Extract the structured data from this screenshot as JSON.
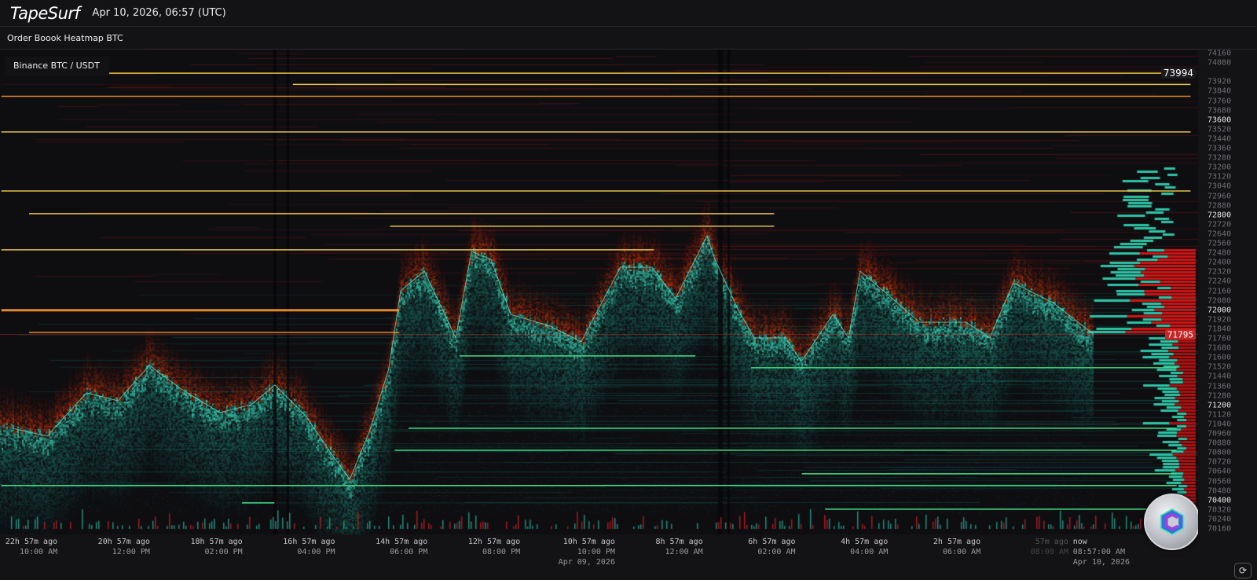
{
  "header": {
    "logo": "TapeSurf",
    "datetime": "Apr 10, 2026, 06:57 (UTC)"
  },
  "subheader": {
    "title": "Order Boook Heatmap BTC"
  },
  "legend": {
    "label": "Binance BTC / USDT"
  },
  "colors": {
    "ask": "#d01515",
    "bid": "#2ec4a6",
    "level_yellow": "#e3c04a",
    "level_orange": "#e08a2a",
    "level_green": "#3ee08a",
    "last_price": "#e53935",
    "background": "#0e0e11"
  },
  "chart_data": {
    "type": "heatmap",
    "y_unit": "USDT",
    "ylim": [
      70160,
      74160
    ],
    "y_ticks": [
      74160,
      74080,
      73920,
      73840,
      73760,
      73680,
      73600,
      73520,
      73440,
      73360,
      73280,
      73200,
      73120,
      73040,
      72960,
      72880,
      72800,
      72720,
      72640,
      72560,
      72480,
      72400,
      72320,
      72240,
      72160,
      72080,
      72000,
      71920,
      71840,
      71760,
      71680,
      71600,
      71520,
      71440,
      71360,
      71280,
      71200,
      71120,
      71040,
      70960,
      70880,
      70800,
      70720,
      70640,
      70560,
      70480,
      70400,
      70320,
      70240,
      70160
    ],
    "y_ticks_bright": [
      73600,
      72800,
      72000,
      71200,
      70400
    ],
    "current_level_label": "73994",
    "last_price_label": "71795",
    "x_ticks": [
      {
        "ago": "22h 57m ago",
        "time": "10:00 AM",
        "hours_ago": 22.95
      },
      {
        "ago": "20h 57m ago",
        "time": "12:00 PM",
        "hours_ago": 20.95
      },
      {
        "ago": "18h 57m ago",
        "time": "02:00 PM",
        "hours_ago": 18.95
      },
      {
        "ago": "16h 57m ago",
        "time": "04:00 PM",
        "hours_ago": 16.95
      },
      {
        "ago": "14h 57m ago",
        "time": "06:00 PM",
        "hours_ago": 14.95
      },
      {
        "ago": "12h 57m ago",
        "time": "08:00 PM",
        "hours_ago": 12.95
      },
      {
        "ago": "10h 57m ago",
        "time": "10:00 PM",
        "date": "Apr 09, 2026",
        "hours_ago": 10.95
      },
      {
        "ago": "8h 57m ago",
        "time": "12:00 AM",
        "hours_ago": 8.95
      },
      {
        "ago": "6h 57m ago",
        "time": "02:00 AM",
        "hours_ago": 6.95
      },
      {
        "ago": "4h 57m ago",
        "time": "04:00 AM",
        "hours_ago": 4.95
      },
      {
        "ago": "2h 57m ago",
        "time": "06:00 AM",
        "hours_ago": 2.95
      },
      {
        "ago": "57m ago",
        "time": "08:00 AM",
        "hours_ago": 0.95,
        "dim": true
      },
      {
        "ago": "now",
        "time": "08:57:00 AM",
        "date": "Apr 10, 2026",
        "hours_ago": 0
      }
    ],
    "mid_price": [
      [
        23.37,
        71007
      ],
      [
        22.61,
        70941
      ],
      [
        21.76,
        71304
      ],
      [
        21.08,
        71238
      ],
      [
        20.4,
        71536
      ],
      [
        19.72,
        71338
      ],
      [
        18.88,
        71139
      ],
      [
        18.2,
        71205
      ],
      [
        17.69,
        71371
      ],
      [
        17.01,
        71106
      ],
      [
        16.5,
        70809
      ],
      [
        16.07,
        70577
      ],
      [
        15.65,
        70974
      ],
      [
        15.23,
        71503
      ],
      [
        14.97,
        72164
      ],
      [
        14.46,
        72329
      ],
      [
        13.78,
        71767
      ],
      [
        13.44,
        72494
      ],
      [
        13.02,
        72428
      ],
      [
        12.59,
        71965
      ],
      [
        11.74,
        71866
      ],
      [
        11.07,
        71734
      ],
      [
        10.22,
        72362
      ],
      [
        9.54,
        72362
      ],
      [
        9.03,
        72098
      ],
      [
        8.35,
        72626
      ],
      [
        8.18,
        72428
      ],
      [
        7.67,
        71999
      ],
      [
        7.33,
        71767
      ],
      [
        6.65,
        71767
      ],
      [
        6.31,
        71569
      ],
      [
        5.63,
        71965
      ],
      [
        5.29,
        71767
      ],
      [
        5.04,
        72329
      ],
      [
        4.44,
        72131
      ],
      [
        3.76,
        71899
      ],
      [
        2.75,
        71899
      ],
      [
        2.24,
        71767
      ],
      [
        1.73,
        72230
      ],
      [
        0.88,
        72065
      ],
      [
        0,
        71800
      ]
    ],
    "levels": [
      {
        "price": 73994,
        "from": 21.6,
        "to": -2.1,
        "color": "yellow"
      },
      {
        "price": 73900,
        "from": 17.3,
        "to": -2.1,
        "color": "yellow"
      },
      {
        "price": 73800,
        "from": 23.6,
        "to": -2.1,
        "color": "orange"
      },
      {
        "price": 73500,
        "from": 23.6,
        "to": -2.1,
        "color": "yellow"
      },
      {
        "price": 73003,
        "from": 23.6,
        "to": -2.1,
        "color": "yellow"
      },
      {
        "price": 72812,
        "from": 23.0,
        "to": 6.9,
        "color": "yellow"
      },
      {
        "price": 72706,
        "from": 15.2,
        "to": 6.9,
        "color": "yellow"
      },
      {
        "price": 72508,
        "from": 23.6,
        "to": 9.5,
        "color": "yellow"
      },
      {
        "price": 72000,
        "from": 23.6,
        "to": 15.0,
        "color": "orange"
      },
      {
        "price": 71813,
        "from": 23.0,
        "to": 15.0,
        "color": "orange"
      },
      {
        "price": 71615,
        "from": 13.7,
        "to": 8.6,
        "color": "green"
      },
      {
        "price": 71516,
        "from": 7.4,
        "to": -1.8,
        "color": "green"
      },
      {
        "price": 71007,
        "from": 14.8,
        "to": -1.8,
        "color": "green"
      },
      {
        "price": 70822,
        "from": 15.1,
        "to": -1.8,
        "color": "green"
      },
      {
        "price": 70624,
        "from": 6.3,
        "to": -1.8,
        "color": "green"
      },
      {
        "price": 70525,
        "from": 23.6,
        "to": -1.8,
        "color": "green"
      },
      {
        "price": 70379,
        "from": 18.4,
        "to": 17.7,
        "color": "green"
      },
      {
        "price": 70326,
        "from": 5.8,
        "to": -1.8,
        "color": "green"
      }
    ]
  },
  "controls": {
    "reset_icon": "refresh-icon",
    "reset_symbol": "⟳",
    "logo_icon": "coin-logo-icon"
  }
}
